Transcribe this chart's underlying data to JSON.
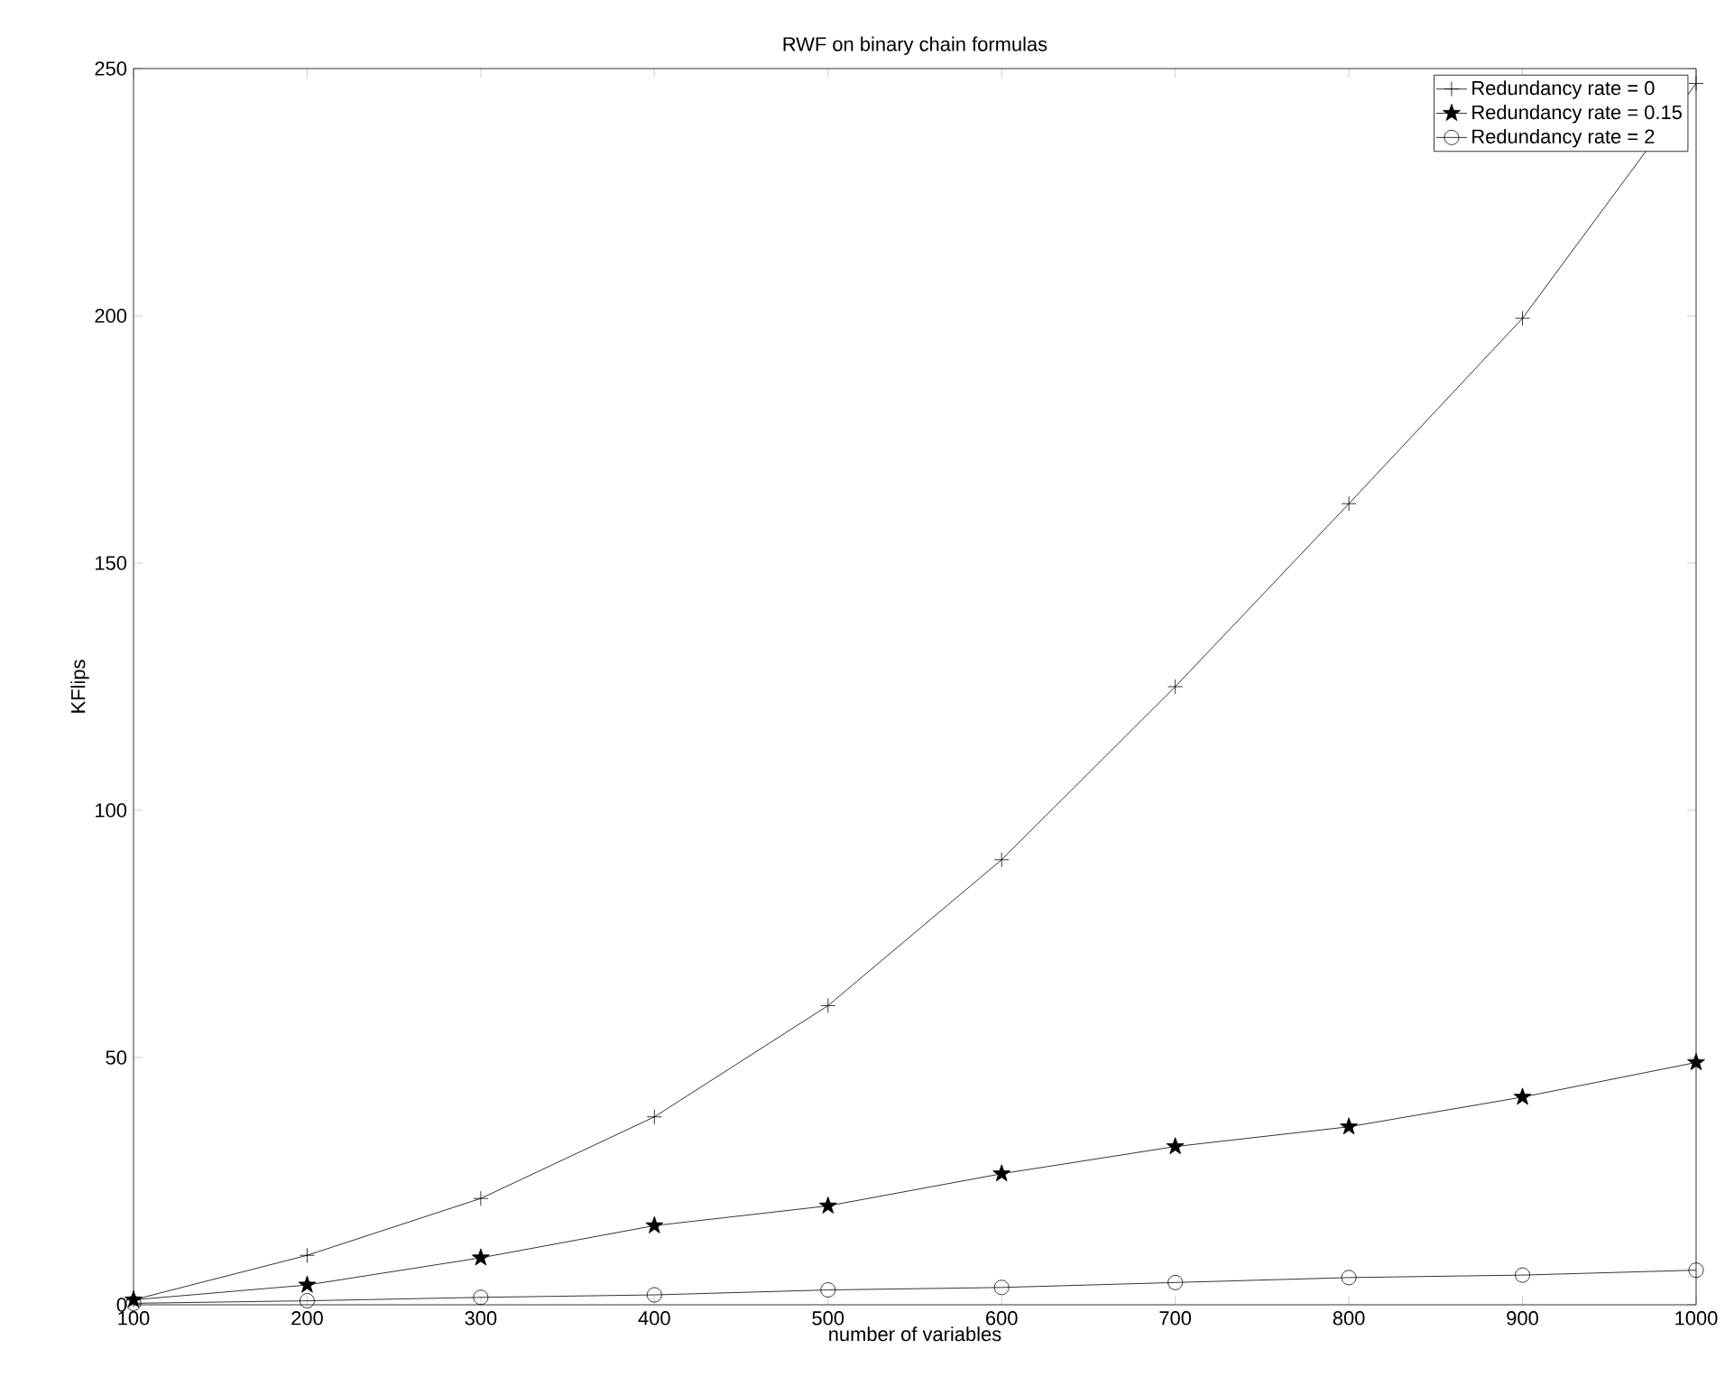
{
  "chart_data": {
    "type": "line",
    "title": "RWF on binary chain formulas",
    "xlabel": "number of variables",
    "ylabel": "KFlips",
    "x": [
      100,
      200,
      300,
      400,
      500,
      600,
      700,
      800,
      900,
      1000
    ],
    "series": [
      {
        "name": "Redundancy rate = 0",
        "color": "#000000",
        "marker": "cross",
        "values": [
          1,
          10,
          21.5,
          38,
          60.5,
          90,
          125,
          162,
          199.5,
          247
        ]
      },
      {
        "name": "Redundancy rate = 0.15",
        "color": "#000000",
        "marker": "star",
        "values": [
          1,
          4,
          9.5,
          16,
          20,
          26.5,
          32,
          36,
          42,
          49
        ]
      },
      {
        "name": "Redundancy rate = 2",
        "color": "#000000",
        "marker": "circle",
        "values": [
          0.3,
          0.8,
          1.5,
          2,
          3,
          3.5,
          4.5,
          5.5,
          6,
          7
        ]
      }
    ],
    "xlim": [
      100,
      1000
    ],
    "ylim": [
      0,
      250
    ],
    "xticks": [
      100,
      200,
      300,
      400,
      500,
      600,
      700,
      800,
      900,
      1000
    ],
    "yticks": [
      0,
      50,
      100,
      150,
      200,
      250
    ],
    "grid": false,
    "legend": "top right",
    "line_style": "solid"
  }
}
